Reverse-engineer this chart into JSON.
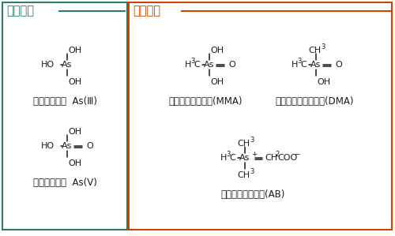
{
  "bg_color": "#ffffff",
  "inorganic_box_color": "#2e7d5e",
  "organic_box_color": "#cc4400",
  "text_color": "#1a1a1a",
  "inorganic_label": "無機ヒ素",
  "organic_label": "有機ヒ素",
  "inorganic_label_color": "#2e7d5e",
  "organic_label_color": "#cc4400",
  "label_AsIII": "三酸化二ヒ素  As(Ⅲ)",
  "label_AsV": "五酸化二ヒ素  As(Ⅴ)",
  "label_MMA": "メチルアルソン酸(MMA)",
  "label_DMA": "ジメチルアルシン酸(DMA)",
  "label_AB": "アルセノベタイン(AB)"
}
